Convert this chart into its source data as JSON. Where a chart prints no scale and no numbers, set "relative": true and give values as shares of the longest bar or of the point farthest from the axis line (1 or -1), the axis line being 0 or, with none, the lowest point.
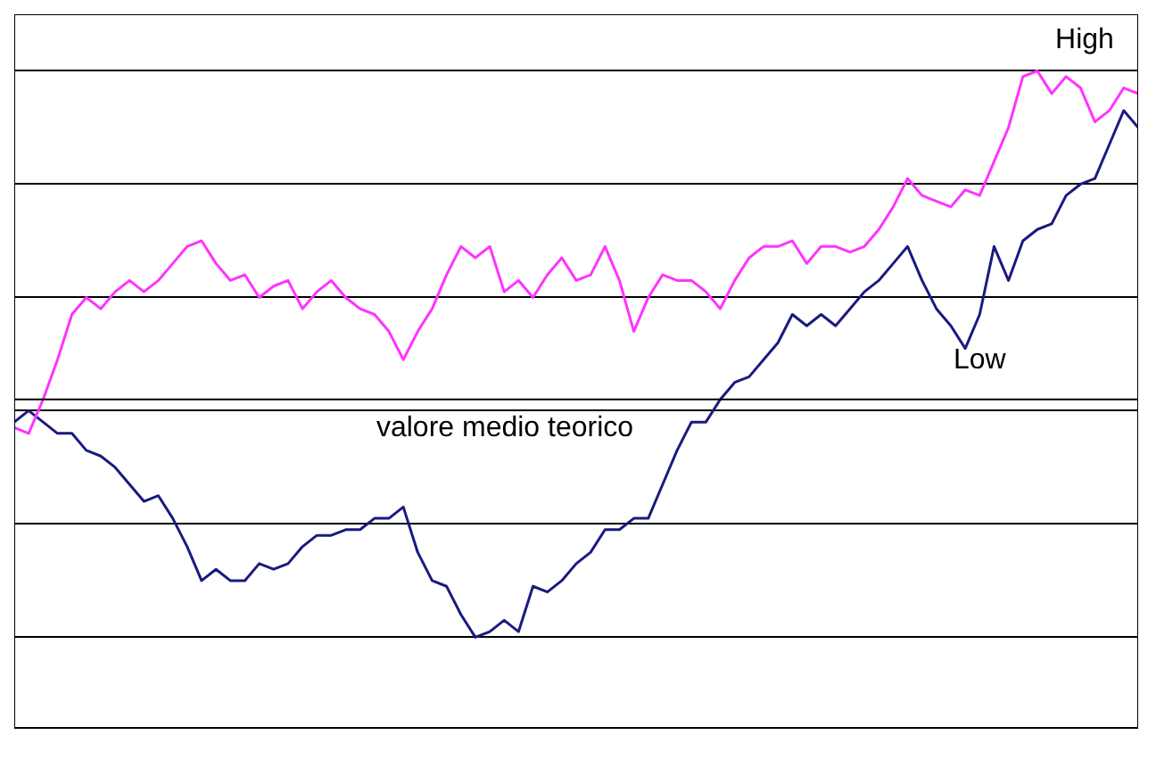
{
  "chart_data": {
    "type": "line",
    "relative": true,
    "grid": "y",
    "legend": false,
    "marker": "none",
    "line_style": "solid",
    "categories": [
      null,
      null,
      null,
      null,
      null,
      null,
      null,
      null,
      null,
      null,
      null,
      null,
      null,
      null,
      null,
      null,
      null,
      null,
      null,
      null,
      null,
      null,
      null,
      null,
      null,
      null,
      null,
      null,
      null,
      null,
      null,
      null,
      null,
      null,
      null,
      null,
      null,
      null,
      null,
      null,
      null,
      null,
      null,
      null,
      null,
      null,
      null,
      null,
      null,
      null,
      null,
      null,
      null,
      null,
      null,
      null,
      null,
      null,
      null,
      null,
      null,
      null,
      null,
      null,
      null,
      null,
      null,
      null,
      null,
      null,
      null,
      null,
      null,
      null,
      null,
      null,
      null,
      null,
      null
    ],
    "series": [
      {
        "name": "High",
        "color": "#ff33ff",
        "values": [
          0.37,
          0.36,
          0.42,
          0.49,
          0.57,
          0.6,
          0.58,
          0.61,
          0.63,
          0.61,
          0.63,
          0.66,
          0.69,
          0.7,
          0.66,
          0.63,
          0.64,
          0.6,
          0.62,
          0.63,
          0.58,
          0.61,
          0.63,
          0.6,
          0.58,
          0.57,
          0.54,
          0.49,
          0.54,
          0.58,
          0.64,
          0.69,
          0.67,
          0.69,
          0.61,
          0.63,
          0.6,
          0.64,
          0.67,
          0.63,
          0.64,
          0.69,
          0.63,
          0.54,
          0.6,
          0.64,
          0.63,
          0.63,
          0.61,
          0.58,
          0.63,
          0.67,
          0.69,
          0.69,
          0.7,
          0.66,
          0.69,
          0.69,
          0.68,
          0.69,
          0.72,
          0.76,
          0.81,
          0.78,
          0.77,
          0.76,
          0.79,
          0.78,
          0.84,
          0.9,
          0.99,
          1,
          0.96,
          0.99,
          0.97,
          0.91,
          0.93,
          0.97,
          0.96
        ]
      },
      {
        "name": "Low",
        "color": "#1a1a80",
        "values": [
          0.38,
          0.4,
          0.38,
          0.36,
          0.36,
          0.33,
          0.32,
          0.3,
          0.27,
          0.24,
          0.25,
          0.21,
          0.16,
          0.1,
          0.12,
          0.1,
          0.1,
          0.13,
          0.12,
          0.13,
          0.16,
          0.18,
          0.18,
          0.19,
          0.19,
          0.21,
          0.21,
          0.23,
          0.15,
          0.1,
          0.09,
          0.04,
          0,
          0.01,
          0.03,
          0.01,
          0.09,
          0.08,
          0.1,
          0.13,
          0.15,
          0.19,
          0.19,
          0.21,
          0.21,
          0.27,
          0.33,
          0.38,
          0.38,
          0.42,
          0.45,
          0.46,
          0.49,
          0.52,
          0.57,
          0.55,
          0.57,
          0.55,
          0.58,
          0.61,
          0.63,
          0.66,
          0.69,
          0.63,
          0.58,
          0.55,
          0.51,
          0.57,
          0.69,
          0.63,
          0.7,
          0.72,
          0.73,
          0.78,
          0.8,
          0.81,
          0.87,
          0.93,
          0.9
        ]
      }
    ],
    "ref_lines": [
      {
        "axis": "y",
        "value": 0.42,
        "label": "valore medio teorico",
        "color": "#000000"
      }
    ]
  }
}
